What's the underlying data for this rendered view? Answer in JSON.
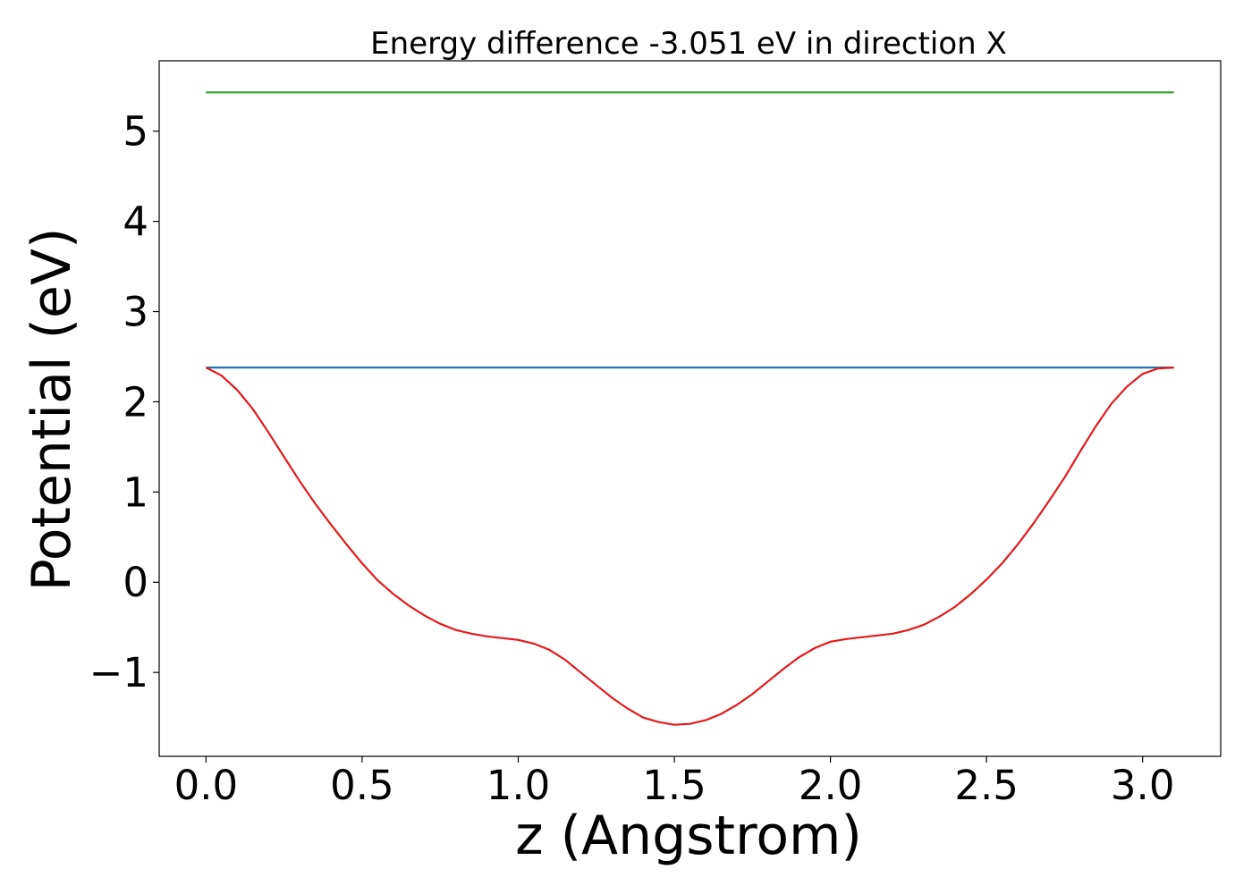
{
  "chart_data": {
    "type": "line",
    "title": "Energy difference -3.051 eV in direction X",
    "xlabel": "z (Angstrom)",
    "ylabel": "Potential (eV)",
    "xlim": [
      -0.15,
      3.25
    ],
    "ylim": [
      -1.93,
      5.78
    ],
    "x_ticks": [
      0.0,
      0.5,
      1.0,
      1.5,
      2.0,
      2.5,
      3.0
    ],
    "x_tick_labels": [
      "0.0",
      "0.5",
      "1.0",
      "1.5",
      "2.0",
      "2.5",
      "3.0"
    ],
    "y_ticks": [
      -1,
      0,
      1,
      2,
      3,
      4,
      5
    ],
    "y_tick_labels": [
      "−1",
      "0",
      "1",
      "2",
      "3",
      "4",
      "5"
    ],
    "grid": false,
    "series": [
      {
        "color": "#2ca02c",
        "x": [
          0.0,
          3.1
        ],
        "y": [
          5.43,
          5.43
        ]
      },
      {
        "color": "#1f77b4",
        "x": [
          0.0,
          3.1
        ],
        "y": [
          2.38,
          2.38
        ]
      },
      {
        "color": "#e41a1c",
        "x": [
          0.0,
          0.05,
          0.1,
          0.15,
          0.2,
          0.25,
          0.3,
          0.35,
          0.4,
          0.45,
          0.5,
          0.55,
          0.6,
          0.65,
          0.7,
          0.75,
          0.8,
          0.85,
          0.9,
          0.95,
          1.0,
          1.05,
          1.1,
          1.15,
          1.2,
          1.25,
          1.3,
          1.35,
          1.4,
          1.45,
          1.5,
          1.55,
          1.6,
          1.65,
          1.7,
          1.75,
          1.8,
          1.85,
          1.9,
          1.95,
          2.0,
          2.05,
          2.1,
          2.15,
          2.2,
          2.25,
          2.3,
          2.35,
          2.4,
          2.45,
          2.5,
          2.55,
          2.6,
          2.65,
          2.7,
          2.75,
          2.8,
          2.85,
          2.9,
          2.95,
          3.0,
          3.05,
          3.1
        ],
        "y": [
          2.38,
          2.29,
          2.13,
          1.92,
          1.66,
          1.39,
          1.12,
          0.87,
          0.64,
          0.42,
          0.21,
          0.02,
          -0.13,
          -0.26,
          -0.37,
          -0.46,
          -0.53,
          -0.57,
          -0.6,
          -0.62,
          -0.64,
          -0.68,
          -0.75,
          -0.86,
          -1.0,
          -1.14,
          -1.28,
          -1.4,
          -1.5,
          -1.55,
          -1.58,
          -1.57,
          -1.53,
          -1.46,
          -1.36,
          -1.24,
          -1.1,
          -0.96,
          -0.83,
          -0.73,
          -0.66,
          -0.63,
          -0.61,
          -0.59,
          -0.57,
          -0.53,
          -0.47,
          -0.38,
          -0.27,
          -0.13,
          0.03,
          0.21,
          0.42,
          0.65,
          0.9,
          1.16,
          1.45,
          1.73,
          1.98,
          2.17,
          2.31,
          2.37,
          2.38
        ]
      }
    ]
  }
}
